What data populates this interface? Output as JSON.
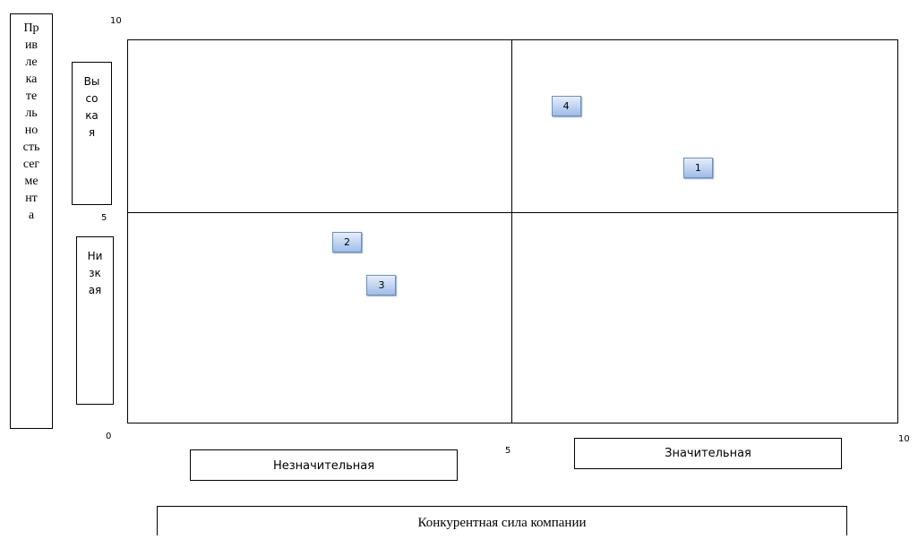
{
  "y_axis": {
    "title": "Привлекательность сегмента",
    "title_lines": "Пр\nив\nле\nка\nте\nль\nно\nсть\nсег\nме\nнт\nа",
    "high_label": "Высокая",
    "high_label_lines": "Вы\nсо\nка\nя",
    "low_label": "Низкая",
    "low_label_lines": "Ни\nзк\nая",
    "ticks": [
      "10",
      "5",
      "0"
    ]
  },
  "x_axis": {
    "title": "Конкурентная сила компании",
    "weak_label": "Незначительная",
    "strong_label": "Значительная",
    "ticks": [
      "5",
      "10"
    ]
  },
  "points": [
    {
      "label": "1",
      "x": 7.4,
      "y": 6.3
    },
    {
      "label": "2",
      "x": 2.85,
      "y": 4.3
    },
    {
      "label": "3",
      "x": 3.3,
      "y": 3.3
    },
    {
      "label": "4",
      "x": 5.7,
      "y": 8.1
    }
  ]
}
